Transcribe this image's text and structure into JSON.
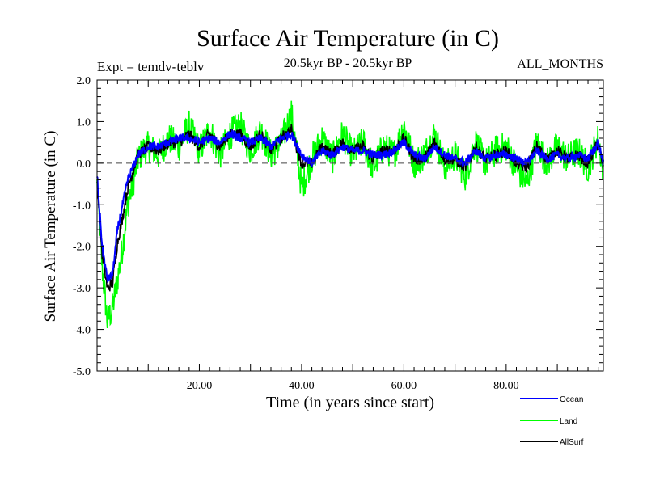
{
  "chart_data": {
    "type": "line",
    "title": "Surface Air Temperature (in C)",
    "subtitle_left": "Expt = temdv-teblv",
    "subtitle_center": "20.5kyr BP - 20.5kyr BP",
    "subtitle_right": "ALL_MONTHS",
    "xlabel": "Time (in years since start)",
    "ylabel": "Surface Air Temperature (in C)",
    "xlim": [
      0,
      99
    ],
    "ylim": [
      -5.0,
      2.0
    ],
    "xticks": [
      20,
      40,
      60,
      80
    ],
    "xtick_labels": [
      "20.00",
      "40.00",
      "60.00",
      "80.00"
    ],
    "yticks": [
      -5.0,
      -4.0,
      -3.0,
      -2.0,
      -1.0,
      0.0,
      1.0,
      2.0
    ],
    "ytick_labels": [
      "-5.0",
      "-4.0",
      "-3.0",
      "-2.0",
      "-1.0",
      "0.0",
      "1.0",
      "2.0"
    ],
    "reference_line": 0.0,
    "legend_position": "bottom-right",
    "series": [
      {
        "name": "Ocean",
        "color": "#0000ff",
        "x": [
          0,
          1,
          2,
          3,
          4,
          5,
          6,
          7,
          8,
          9,
          10,
          12,
          14,
          16,
          18,
          20,
          22,
          24,
          26,
          28,
          30,
          32,
          34,
          36,
          38,
          40,
          42,
          44,
          46,
          48,
          50,
          52,
          54,
          56,
          58,
          60,
          62,
          64,
          66,
          68,
          70,
          72,
          74,
          76,
          78,
          80,
          82,
          84,
          86,
          88,
          90,
          92,
          94,
          96,
          98,
          99
        ],
        "values": [
          -0.3,
          -2.0,
          -2.8,
          -2.7,
          -1.6,
          -1.0,
          -0.4,
          -0.1,
          0.2,
          0.3,
          0.4,
          0.4,
          0.5,
          0.6,
          0.6,
          0.5,
          0.6,
          0.5,
          0.7,
          0.6,
          0.5,
          0.6,
          0.4,
          0.6,
          0.7,
          0.2,
          0.0,
          0.3,
          0.2,
          0.4,
          0.3,
          0.3,
          0.2,
          0.2,
          0.3,
          0.5,
          0.2,
          0.1,
          0.4,
          0.2,
          0.1,
          0.0,
          0.3,
          0.1,
          0.2,
          0.2,
          0.1,
          0.0,
          0.3,
          0.1,
          0.2,
          0.1,
          0.2,
          0.1,
          0.5,
          0.0
        ]
      },
      {
        "name": "Land",
        "color": "#00ff00",
        "x": [
          0,
          1,
          2,
          3,
          4,
          5,
          6,
          7,
          8,
          9,
          10,
          12,
          14,
          16,
          18,
          20,
          22,
          24,
          26,
          28,
          30,
          32,
          34,
          36,
          38,
          40,
          42,
          44,
          46,
          48,
          50,
          52,
          54,
          56,
          58,
          60,
          62,
          64,
          66,
          68,
          70,
          72,
          74,
          76,
          78,
          80,
          82,
          84,
          86,
          88,
          90,
          92,
          94,
          96,
          98,
          99
        ],
        "values": [
          -0.5,
          -2.5,
          -3.8,
          -3.5,
          -2.8,
          -2.0,
          -1.0,
          -0.5,
          0.1,
          0.3,
          0.4,
          0.2,
          0.6,
          0.4,
          0.9,
          0.3,
          0.8,
          0.2,
          0.7,
          0.9,
          0.3,
          0.8,
          0.2,
          0.5,
          1.2,
          -0.6,
          0.1,
          0.6,
          0.1,
          0.7,
          0.2,
          0.5,
          -0.1,
          0.4,
          0.2,
          0.9,
          0.0,
          0.2,
          0.7,
          -0.1,
          0.2,
          -0.3,
          0.5,
          0.0,
          0.3,
          0.4,
          -0.1,
          -0.5,
          0.5,
          0.0,
          0.4,
          0.1,
          0.3,
          -0.1,
          0.6,
          -0.2
        ]
      },
      {
        "name": "AllSurf",
        "color": "#000000",
        "x": [
          0,
          1,
          2,
          3,
          4,
          5,
          6,
          7,
          8,
          9,
          10,
          12,
          14,
          16,
          18,
          20,
          22,
          24,
          26,
          28,
          30,
          32,
          34,
          36,
          38,
          40,
          42,
          44,
          46,
          48,
          50,
          52,
          54,
          56,
          58,
          60,
          62,
          64,
          66,
          68,
          70,
          72,
          74,
          76,
          78,
          80,
          82,
          84,
          86,
          88,
          90,
          92,
          94,
          96,
          98,
          99
        ],
        "values": [
          -0.4,
          -2.2,
          -3.0,
          -2.9,
          -1.9,
          -1.3,
          -0.6,
          -0.2,
          0.2,
          0.3,
          0.4,
          0.3,
          0.5,
          0.5,
          0.7,
          0.4,
          0.7,
          0.4,
          0.7,
          0.7,
          0.4,
          0.7,
          0.3,
          0.6,
          0.8,
          0.0,
          0.0,
          0.4,
          0.2,
          0.5,
          0.3,
          0.4,
          0.1,
          0.3,
          0.3,
          0.6,
          0.1,
          0.1,
          0.5,
          0.1,
          0.1,
          -0.1,
          0.4,
          0.1,
          0.2,
          0.3,
          0.0,
          -0.1,
          0.4,
          0.1,
          0.3,
          0.1,
          0.2,
          0.0,
          0.5,
          -0.1
        ]
      }
    ]
  }
}
